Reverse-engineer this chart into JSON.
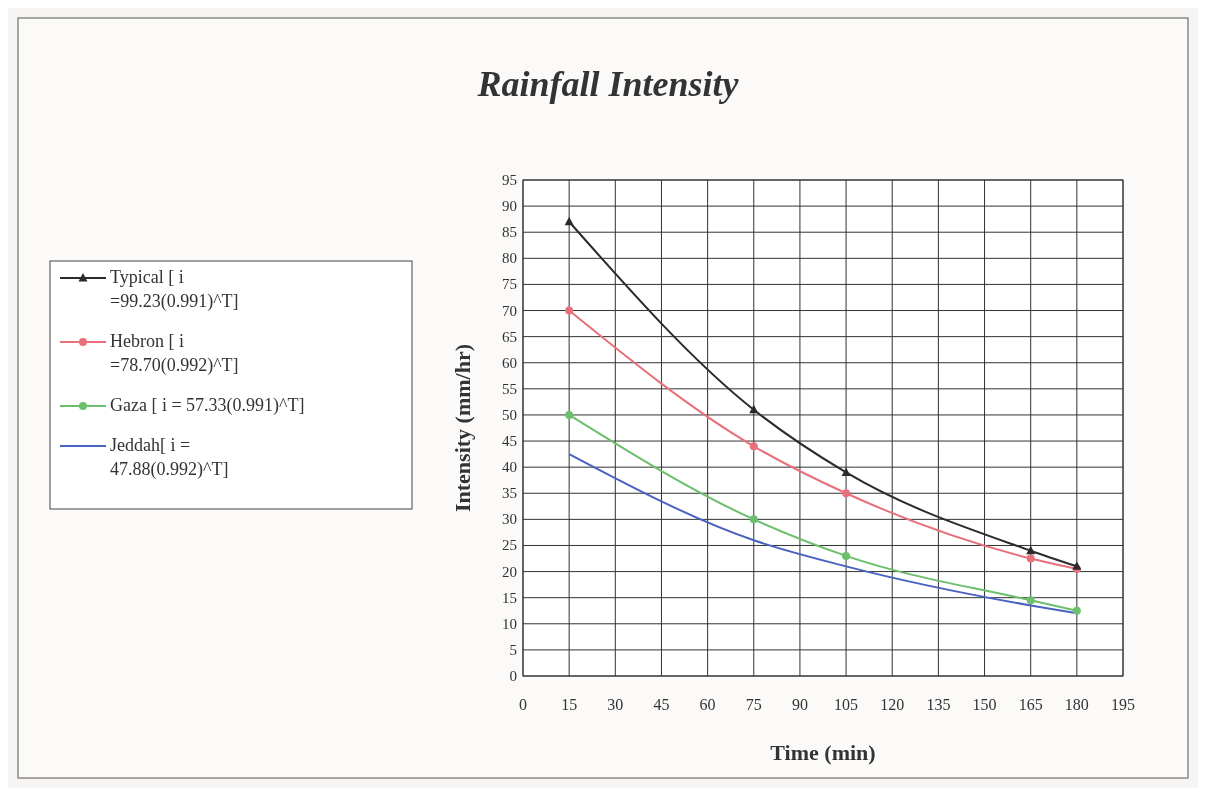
{
  "chart_data": {
    "type": "line",
    "title": "Rainfall Intensity",
    "xlabel": "Time (min)",
    "ylabel": "Intensity (mm/hr)",
    "x": [
      15,
      75,
      105,
      165,
      180
    ],
    "series": [
      {
        "name": "Typical [ i =99.23(0.991)^T]",
        "color": "#2b2b2b",
        "marker": "triangle",
        "values": [
          87,
          51,
          39,
          24,
          21
        ]
      },
      {
        "name": "Hebron [ i =78.70(0.992)^T]",
        "color": "#e8707a",
        "marker": "circle",
        "values": [
          70,
          44,
          35,
          22.5,
          20.5
        ]
      },
      {
        "name": "Gaza [ i = 57.33(0.991)^T]",
        "color": "#6cbf6c",
        "marker": "circle",
        "values": [
          50,
          30,
          23,
          14.5,
          12.5
        ]
      },
      {
        "name": "Jeddah[ i = 47.88(0.992)^T]",
        "color": "#4a62c0",
        "marker": "none",
        "values": [
          42.5,
          26,
          21,
          13.5,
          12
        ]
      }
    ],
    "xlim": [
      0,
      195
    ],
    "xticks": [
      0,
      15,
      30,
      45,
      60,
      75,
      90,
      105,
      120,
      135,
      150,
      165,
      180,
      195
    ],
    "ylim": [
      0,
      95
    ],
    "yticks": [
      0,
      5,
      10,
      15,
      20,
      25,
      30,
      35,
      40,
      45,
      50,
      55,
      60,
      65,
      70,
      75,
      80,
      85,
      90,
      95
    ],
    "grid": true,
    "legend": "left",
    "line_style": "solid"
  }
}
